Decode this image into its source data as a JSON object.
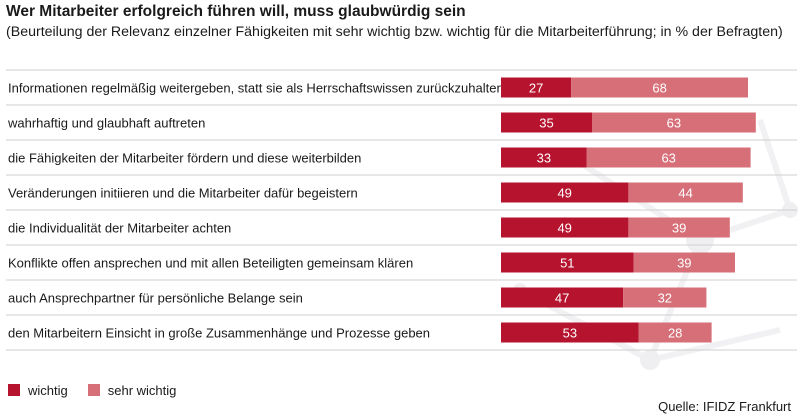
{
  "chart_data": {
    "type": "bar",
    "orientation": "horizontal",
    "stacked": true,
    "title": "Wer Mitarbeiter erfolgreich führen will, muss glaubwürdig sein",
    "subtitle": "(Beurteilung der Relevanz einzelner Fähigkeiten mit sehr wichtig bzw. wichtig für die Mitarbeiterführung; in % der Befragten)",
    "categories": [
      "Informationen regelmäßig weitergeben, statt sie als Herrschaftswissen zurückzuhalten",
      "wahrhaftig und glaubhaft auftreten",
      "die Fähigkeiten der Mitarbeiter fördern und diese weiterbilden",
      "Veränderungen initiieren und die Mitarbeiter dafür begeistern",
      "die Individualität der Mitarbeiter achten",
      "Konflikte offen ansprechen und mit allen Beteiligten gemeinsam klären",
      "auch Ansprechpartner für persönliche Belange sein",
      "den Mitarbeitern Einsicht in große Zusammenhänge und Prozesse geben"
    ],
    "series": [
      {
        "name": "wichtig",
        "color": "#b5132e",
        "values": [
          27,
          35,
          33,
          49,
          49,
          51,
          47,
          53
        ]
      },
      {
        "name": "sehr wichtig",
        "color": "#d66f78",
        "values": [
          68,
          63,
          63,
          44,
          39,
          39,
          32,
          28
        ]
      }
    ],
    "xlim": [
      0,
      100
    ],
    "legend_position": "bottom-left",
    "source": "Quelle: IFIDZ Frankfurt"
  }
}
